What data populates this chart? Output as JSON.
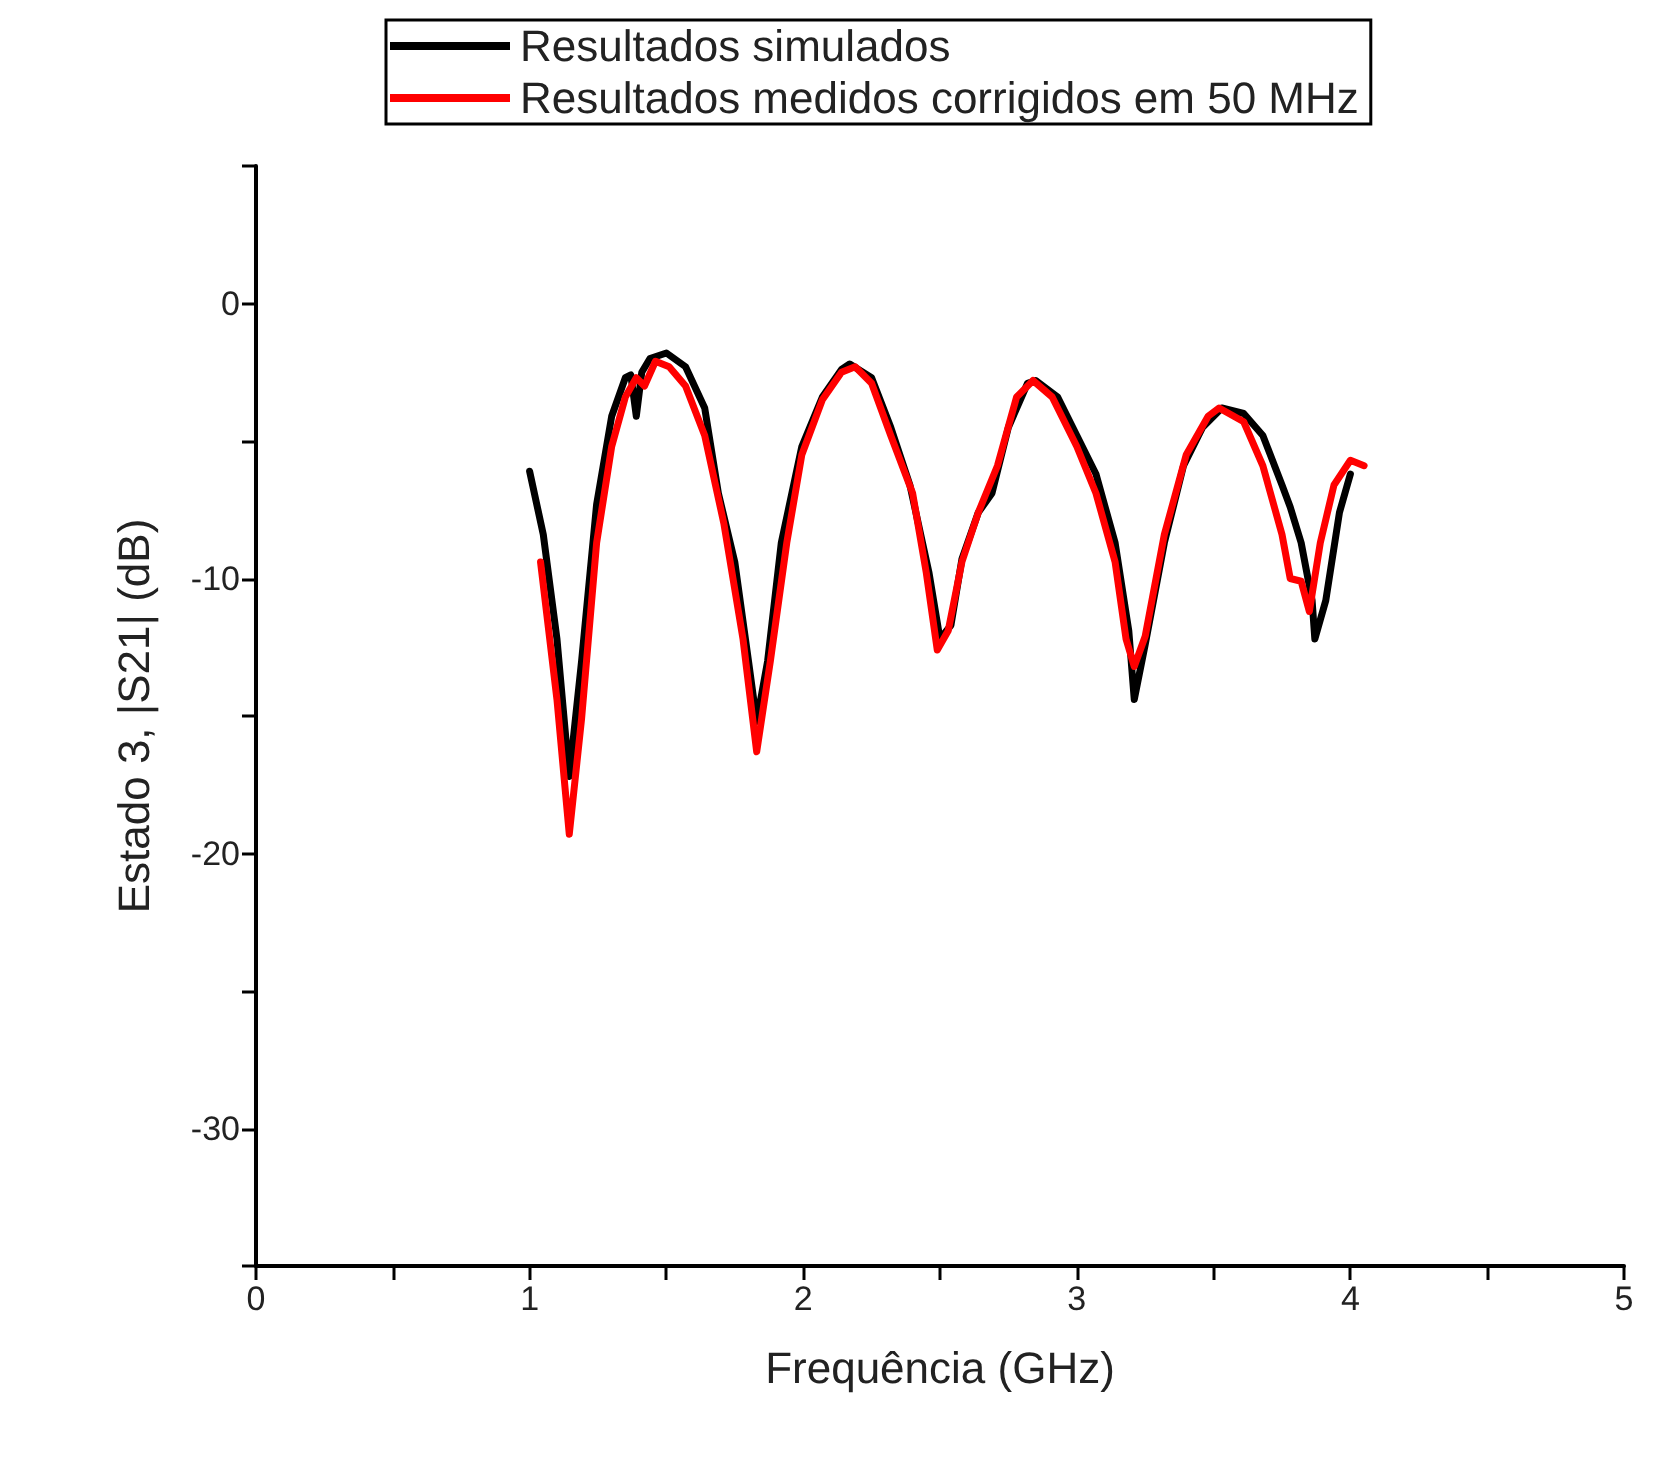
{
  "chart_data": {
    "type": "line",
    "xlabel": "Frequência (GHz)",
    "ylabel": "Estado 3, |S21| (dB)",
    "xlim": [
      0,
      5
    ],
    "ylim": [
      -35,
      5
    ],
    "xticks": [
      0,
      {
        "value": 0.5,
        "label": null
      },
      1,
      {
        "value": 1.5,
        "label": null
      },
      2,
      {
        "value": 2.5,
        "label": null
      },
      3,
      {
        "value": 3.5,
        "label": null
      },
      4,
      {
        "value": 4.5,
        "label": null
      },
      5
    ],
    "yticks": [
      {
        "value": -35,
        "label": null
      },
      -30,
      {
        "value": -25,
        "label": null
      },
      -20,
      {
        "value": -15,
        "label": null
      },
      -10,
      {
        "value": -5,
        "label": null
      },
      0,
      {
        "value": 5,
        "label": null
      }
    ],
    "grid": false,
    "legend": "top",
    "marker": "none",
    "line_style": "solid",
    "series": [
      {
        "name": "Resultados simulados",
        "color": "#000000",
        "x": [
          1.0,
          1.05,
          1.1,
          1.145,
          1.19,
          1.245,
          1.3,
          1.35,
          1.37,
          1.39,
          1.41,
          1.44,
          1.5,
          1.57,
          1.64,
          1.69,
          1.75,
          1.8,
          1.83,
          1.87,
          1.92,
          1.995,
          2.07,
          2.14,
          2.17,
          2.25,
          2.32,
          2.39,
          2.46,
          2.5,
          2.54,
          2.58,
          2.64,
          2.69,
          2.75,
          2.82,
          2.85,
          2.93,
          3.0,
          3.07,
          3.14,
          3.19,
          3.21,
          3.25,
          3.32,
          3.39,
          3.46,
          3.53,
          3.61,
          3.68,
          3.75,
          3.78,
          3.82,
          3.86,
          3.87,
          3.91,
          3.96,
          4.0
        ],
        "values": [
          -6.1,
          -8.4,
          -12.2,
          -17.2,
          -13.0,
          -7.3,
          -4.1,
          -2.7,
          -2.6,
          -4.1,
          -2.5,
          -2.0,
          -1.8,
          -2.3,
          -3.8,
          -6.9,
          -9.4,
          -13.0,
          -15.2,
          -13.0,
          -8.7,
          -5.2,
          -3.4,
          -2.4,
          -2.2,
          -2.7,
          -4.5,
          -6.6,
          -9.8,
          -12.2,
          -11.7,
          -9.3,
          -7.6,
          -6.9,
          -4.5,
          -2.9,
          -2.8,
          -3.4,
          -4.8,
          -6.2,
          -8.7,
          -11.9,
          -14.4,
          -12.4,
          -8.7,
          -5.9,
          -4.5,
          -3.8,
          -4.0,
          -4.8,
          -6.6,
          -7.4,
          -8.7,
          -10.8,
          -12.2,
          -10.8,
          -7.6,
          -6.2
        ]
      },
      {
        "name": "Resultados medidos corrigidos em 50 MHz",
        "color": "#ff0000",
        "x": [
          1.04,
          1.1,
          1.145,
          1.19,
          1.245,
          1.3,
          1.35,
          1.39,
          1.42,
          1.46,
          1.51,
          1.57,
          1.64,
          1.71,
          1.78,
          1.83,
          1.88,
          1.94,
          1.995,
          2.07,
          2.14,
          2.19,
          2.25,
          2.32,
          2.4,
          2.45,
          2.49,
          2.53,
          2.58,
          2.64,
          2.71,
          2.78,
          2.84,
          2.91,
          3.0,
          3.07,
          3.14,
          3.18,
          3.21,
          3.25,
          3.32,
          3.4,
          3.48,
          3.52,
          3.61,
          3.68,
          3.75,
          3.78,
          3.82,
          3.85,
          3.89,
          3.94,
          4.0,
          4.05
        ],
        "values": [
          -9.4,
          -14.4,
          -19.3,
          -15.1,
          -8.7,
          -5.2,
          -3.4,
          -2.7,
          -3.0,
          -2.1,
          -2.3,
          -3.0,
          -4.8,
          -8.0,
          -12.2,
          -16.3,
          -13.0,
          -8.7,
          -5.5,
          -3.5,
          -2.5,
          -2.3,
          -2.9,
          -4.8,
          -6.9,
          -9.8,
          -12.6,
          -11.9,
          -9.4,
          -7.6,
          -5.9,
          -3.4,
          -2.8,
          -3.4,
          -5.2,
          -6.9,
          -9.4,
          -12.2,
          -13.2,
          -12.1,
          -8.4,
          -5.5,
          -4.1,
          -3.8,
          -4.3,
          -5.9,
          -8.4,
          -10.0,
          -10.1,
          -11.2,
          -8.7,
          -6.6,
          -5.7,
          -5.9
        ]
      }
    ]
  }
}
